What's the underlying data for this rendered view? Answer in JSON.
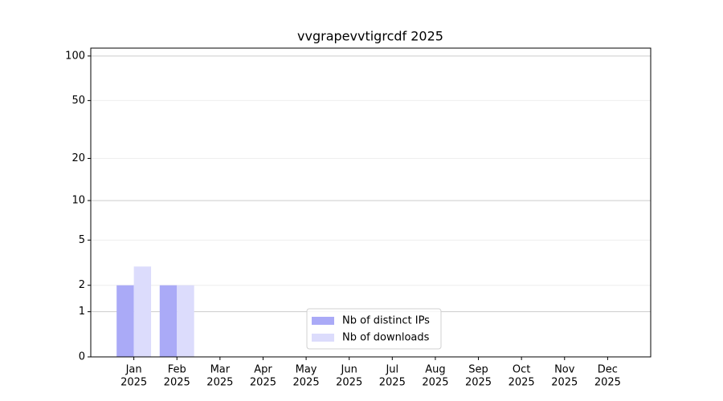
{
  "chart_data": {
    "type": "bar",
    "title": "vvgrapevvtigrcdf 2025",
    "categories": [
      [
        "Jan",
        "2025"
      ],
      [
        "Feb",
        "2025"
      ],
      [
        "Mar",
        "2025"
      ],
      [
        "Apr",
        "2025"
      ],
      [
        "May",
        "2025"
      ],
      [
        "Jun",
        "2025"
      ],
      [
        "Jul",
        "2025"
      ],
      [
        "Aug",
        "2025"
      ],
      [
        "Sep",
        "2025"
      ],
      [
        "Oct",
        "2025"
      ],
      [
        "Nov",
        "2025"
      ],
      [
        "Dec",
        "2025"
      ]
    ],
    "series": [
      {
        "name": "Nb of distinct IPs",
        "color": "#aaaaf7",
        "values": [
          2,
          2,
          0,
          0,
          0,
          0,
          0,
          0,
          0,
          0,
          0,
          0
        ]
      },
      {
        "name": "Nb of downloads",
        "color": "#dcdcfc",
        "values": [
          3,
          2,
          0,
          0,
          0,
          0,
          0,
          0,
          0,
          0,
          0,
          0
        ]
      }
    ],
    "yscale": "log1p",
    "ylim": [
      0,
      113
    ],
    "yticks": [
      0,
      1,
      2,
      5,
      10,
      20,
      50,
      100
    ],
    "grid": true,
    "legend": "lower center"
  }
}
